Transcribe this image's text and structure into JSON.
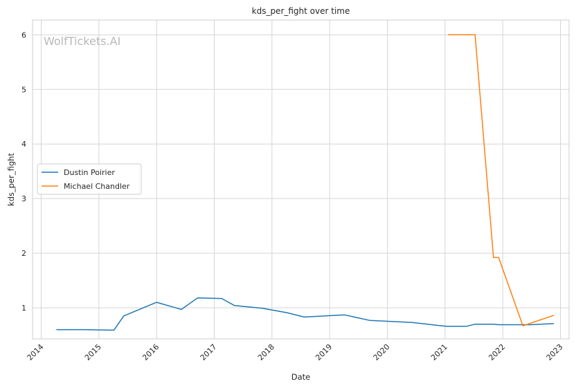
{
  "chart_data": {
    "type": "line",
    "title": "kds_per_fight over time",
    "xlabel": "Date",
    "ylabel": "kds_per_fight",
    "watermark": "WolfTickets.AI",
    "xlim": [
      2013.85,
      2023.15
    ],
    "ylim": [
      0.43,
      6.27
    ],
    "x_ticks": [
      2014,
      2015,
      2016,
      2017,
      2018,
      2019,
      2020,
      2021,
      2022,
      2023
    ],
    "x_tick_labels": [
      "2014",
      "2015",
      "2016",
      "2017",
      "2018",
      "2019",
      "2020",
      "2021",
      "2022",
      "2023"
    ],
    "y_ticks": [
      1,
      2,
      3,
      4,
      5,
      6
    ],
    "y_tick_labels": [
      "1",
      "2",
      "3",
      "4",
      "5",
      "6"
    ],
    "grid": true,
    "legend_position": "center-left",
    "series": [
      {
        "name": "Dustin Poirier",
        "color": "#1f77b4",
        "x": [
          2014.27,
          2014.75,
          2015.0,
          2015.26,
          2015.43,
          2016.0,
          2016.43,
          2016.71,
          2017.13,
          2017.35,
          2017.84,
          2018.26,
          2018.56,
          2019.26,
          2019.69,
          2020.43,
          2021.02,
          2021.37,
          2021.52,
          2021.84,
          2021.93,
          2022.35,
          2022.48,
          2022.88
        ],
        "y": [
          0.6,
          0.6,
          0.595,
          0.59,
          0.85,
          1.1,
          0.97,
          1.18,
          1.17,
          1.04,
          0.99,
          0.91,
          0.83,
          0.87,
          0.77,
          0.73,
          0.66,
          0.66,
          0.7,
          0.7,
          0.69,
          0.69,
          0.69,
          0.71
        ]
      },
      {
        "name": "Michael Chandler",
        "color": "#ff7f0e",
        "x": [
          2021.06,
          2021.52,
          2021.84,
          2021.93,
          2022.35,
          2022.88
        ],
        "y": [
          6.0,
          6.0,
          1.92,
          1.92,
          0.67,
          0.86
        ]
      }
    ]
  }
}
